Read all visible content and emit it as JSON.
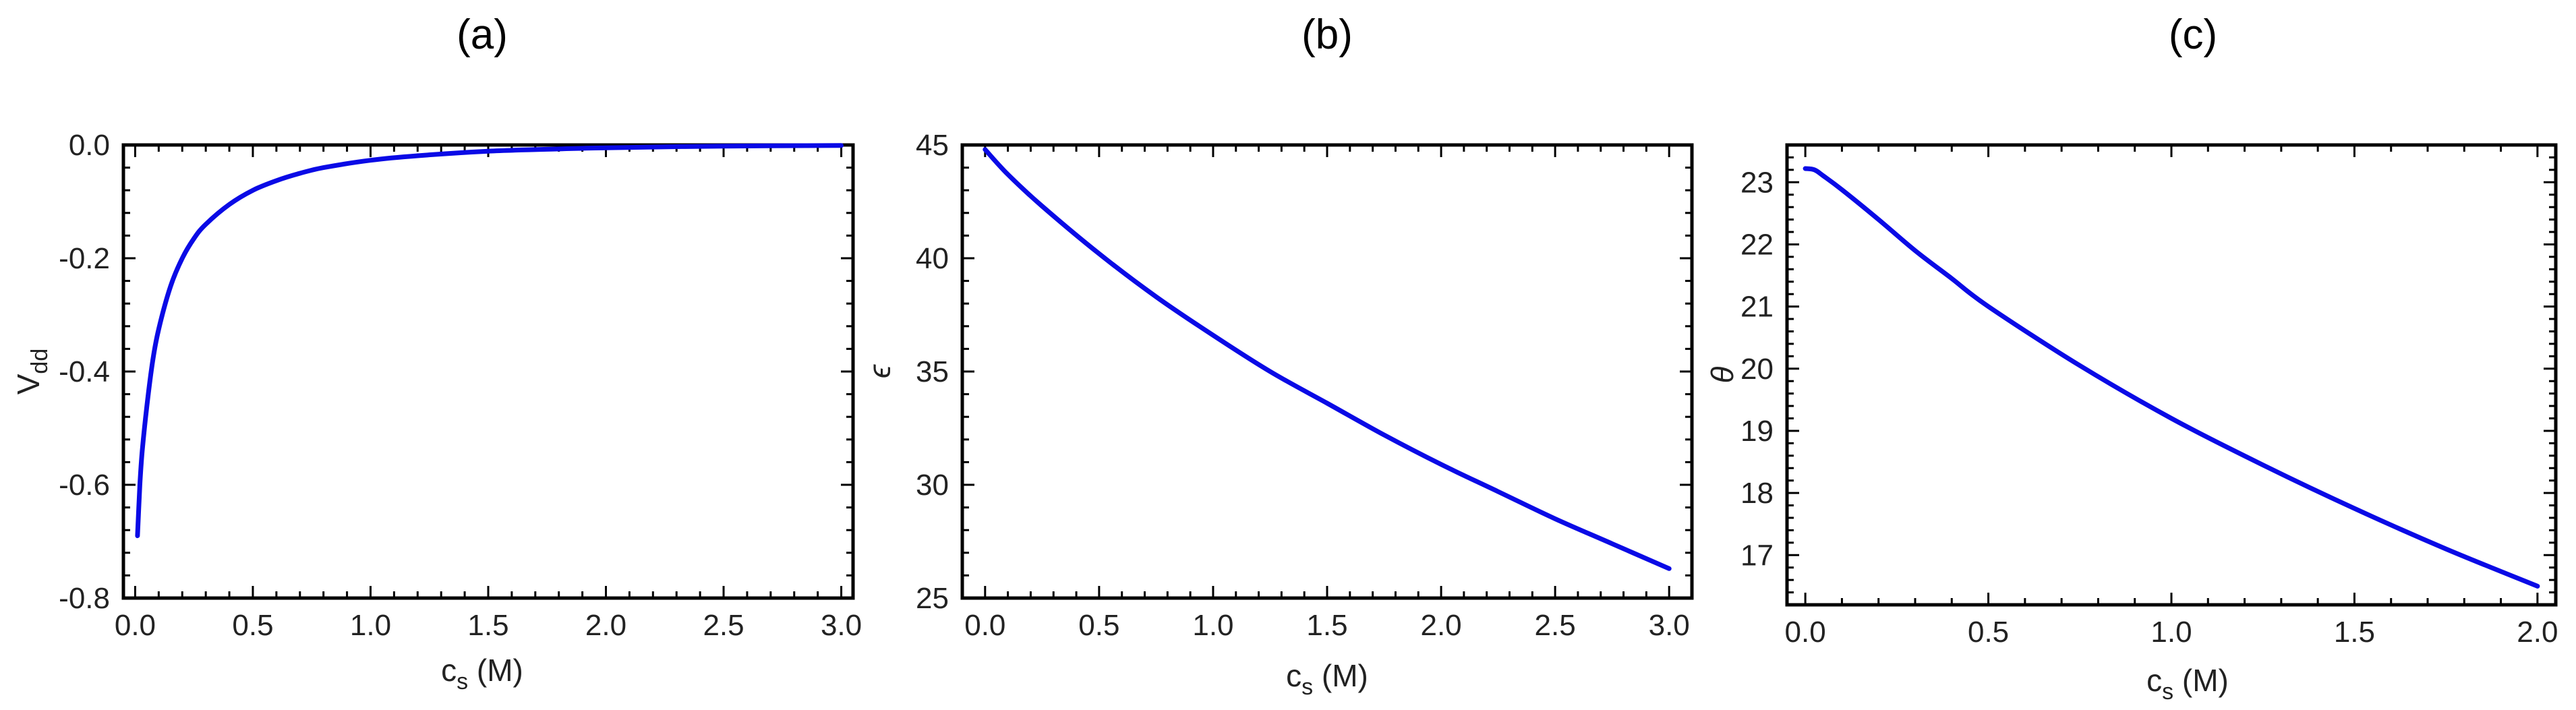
{
  "colors": {
    "curve": "#0a0ae6",
    "frame": "#000000"
  },
  "chart_data": [
    {
      "type": "line",
      "title": "(a)",
      "xlabel_main": "c",
      "xlabel_sub": "s",
      "xlabel_unit": " (M)",
      "ylabel_main": "V",
      "ylabel_sub": "dd",
      "xlim": [
        -0.05,
        3.05
      ],
      "ylim": [
        -0.8,
        0.0
      ],
      "xticks": [
        0.0,
        0.5,
        1.0,
        1.5,
        2.0,
        2.5,
        3.0
      ],
      "xtick_labels": [
        "0.0",
        "0.5",
        "1.0",
        "1.5",
        "2.0",
        "2.5",
        "3.0"
      ],
      "yticks": [
        -0.8,
        -0.6,
        -0.4,
        -0.2,
        0.0
      ],
      "ytick_labels": [
        "-0.8",
        "-0.6",
        "-0.4",
        "-0.2",
        "0.0"
      ],
      "x": [
        0.01,
        0.02,
        0.03,
        0.05,
        0.075,
        0.1,
        0.15,
        0.2,
        0.25,
        0.3,
        0.4,
        0.5,
        0.6,
        0.7,
        0.8,
        1.0,
        1.2,
        1.5,
        1.8,
        2.0,
        2.5,
        3.0
      ],
      "y": [
        -0.69,
        -0.6,
        -0.54,
        -0.46,
        -0.38,
        -0.325,
        -0.25,
        -0.2,
        -0.165,
        -0.14,
        -0.105,
        -0.08,
        -0.063,
        -0.05,
        -0.04,
        -0.027,
        -0.019,
        -0.011,
        -0.007,
        -0.005,
        -0.002,
        -0.001
      ]
    },
    {
      "type": "line",
      "title": "(b)",
      "xlabel_main": "c",
      "xlabel_sub": "s",
      "xlabel_unit": " (M)",
      "ylabel_main": "ϵ",
      "ylabel_sub": "",
      "xlim": [
        -0.1,
        3.1
      ],
      "ylim": [
        25,
        45
      ],
      "xticks": [
        0.0,
        0.5,
        1.0,
        1.5,
        2.0,
        2.5,
        3.0
      ],
      "xtick_labels": [
        "0.0",
        "0.5",
        "1.0",
        "1.5",
        "2.0",
        "2.5",
        "3.0"
      ],
      "yticks": [
        25,
        30,
        35,
        40,
        45
      ],
      "ytick_labels": [
        "25",
        "30",
        "35",
        "40",
        "45"
      ],
      "x": [
        0.0,
        0.1,
        0.25,
        0.5,
        0.75,
        1.0,
        1.25,
        1.5,
        1.75,
        2.0,
        2.25,
        2.5,
        2.75,
        3.0
      ],
      "y": [
        44.8,
        43.7,
        42.3,
        40.2,
        38.3,
        36.6,
        35.0,
        33.6,
        32.2,
        30.9,
        29.7,
        28.5,
        27.4,
        26.3
      ]
    },
    {
      "type": "line",
      "title": "(c)",
      "xlabel_main": "c",
      "xlabel_sub": "s",
      "xlabel_unit": " (M)",
      "ylabel_main": "θ",
      "ylabel_sub": "",
      "xlim": [
        -0.05,
        2.05
      ],
      "ylim": [
        16.2,
        23.6
      ],
      "xticks": [
        0.0,
        0.5,
        1.0,
        1.5,
        2.0
      ],
      "xtick_labels": [
        "0.0",
        "0.5",
        "1.0",
        "1.5",
        "2.0"
      ],
      "yticks": [
        17,
        18,
        19,
        20,
        21,
        22,
        23
      ],
      "ytick_labels": [
        "17",
        "18",
        "19",
        "20",
        "21",
        "22",
        "23"
      ],
      "x": [
        0.0,
        0.025,
        0.05,
        0.1,
        0.2,
        0.3,
        0.4,
        0.5,
        0.75,
        1.0,
        1.25,
        1.5,
        1.75,
        2.0
      ],
      "y": [
        23.22,
        23.2,
        23.1,
        22.88,
        22.4,
        21.9,
        21.45,
        21.0,
        20.05,
        19.2,
        18.45,
        17.75,
        17.1,
        16.5
      ]
    }
  ]
}
